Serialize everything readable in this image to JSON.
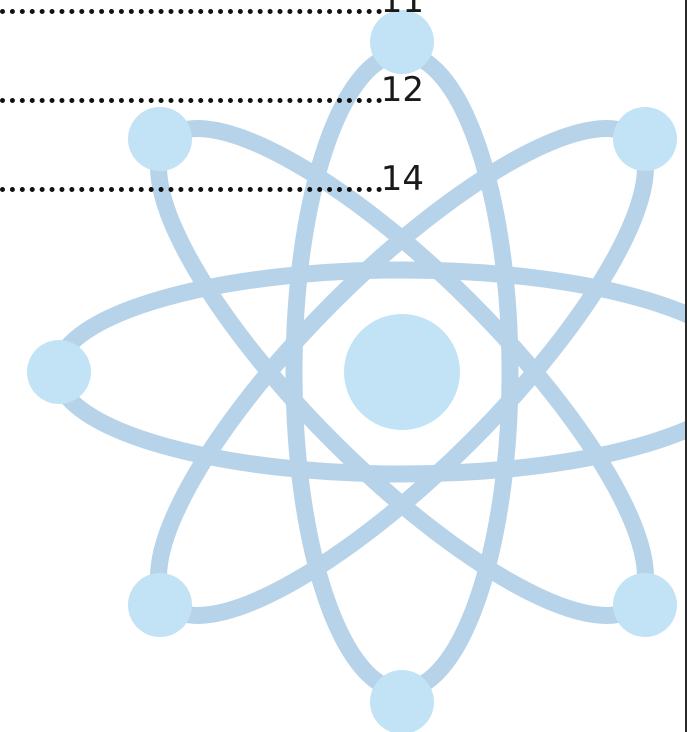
{
  "toc": {
    "entries": [
      {
        "page": "11"
      },
      {
        "page": "12"
      },
      {
        "page": "14"
      }
    ]
  },
  "illustration": {
    "icon": "atom-icon",
    "orbit_color": "#b7d3e9",
    "electron_color": "#c2e2f5",
    "nucleus_color": "#c2e2f5"
  },
  "colors": {
    "text": "#1a1a1a",
    "border": "#2a2a2a"
  }
}
